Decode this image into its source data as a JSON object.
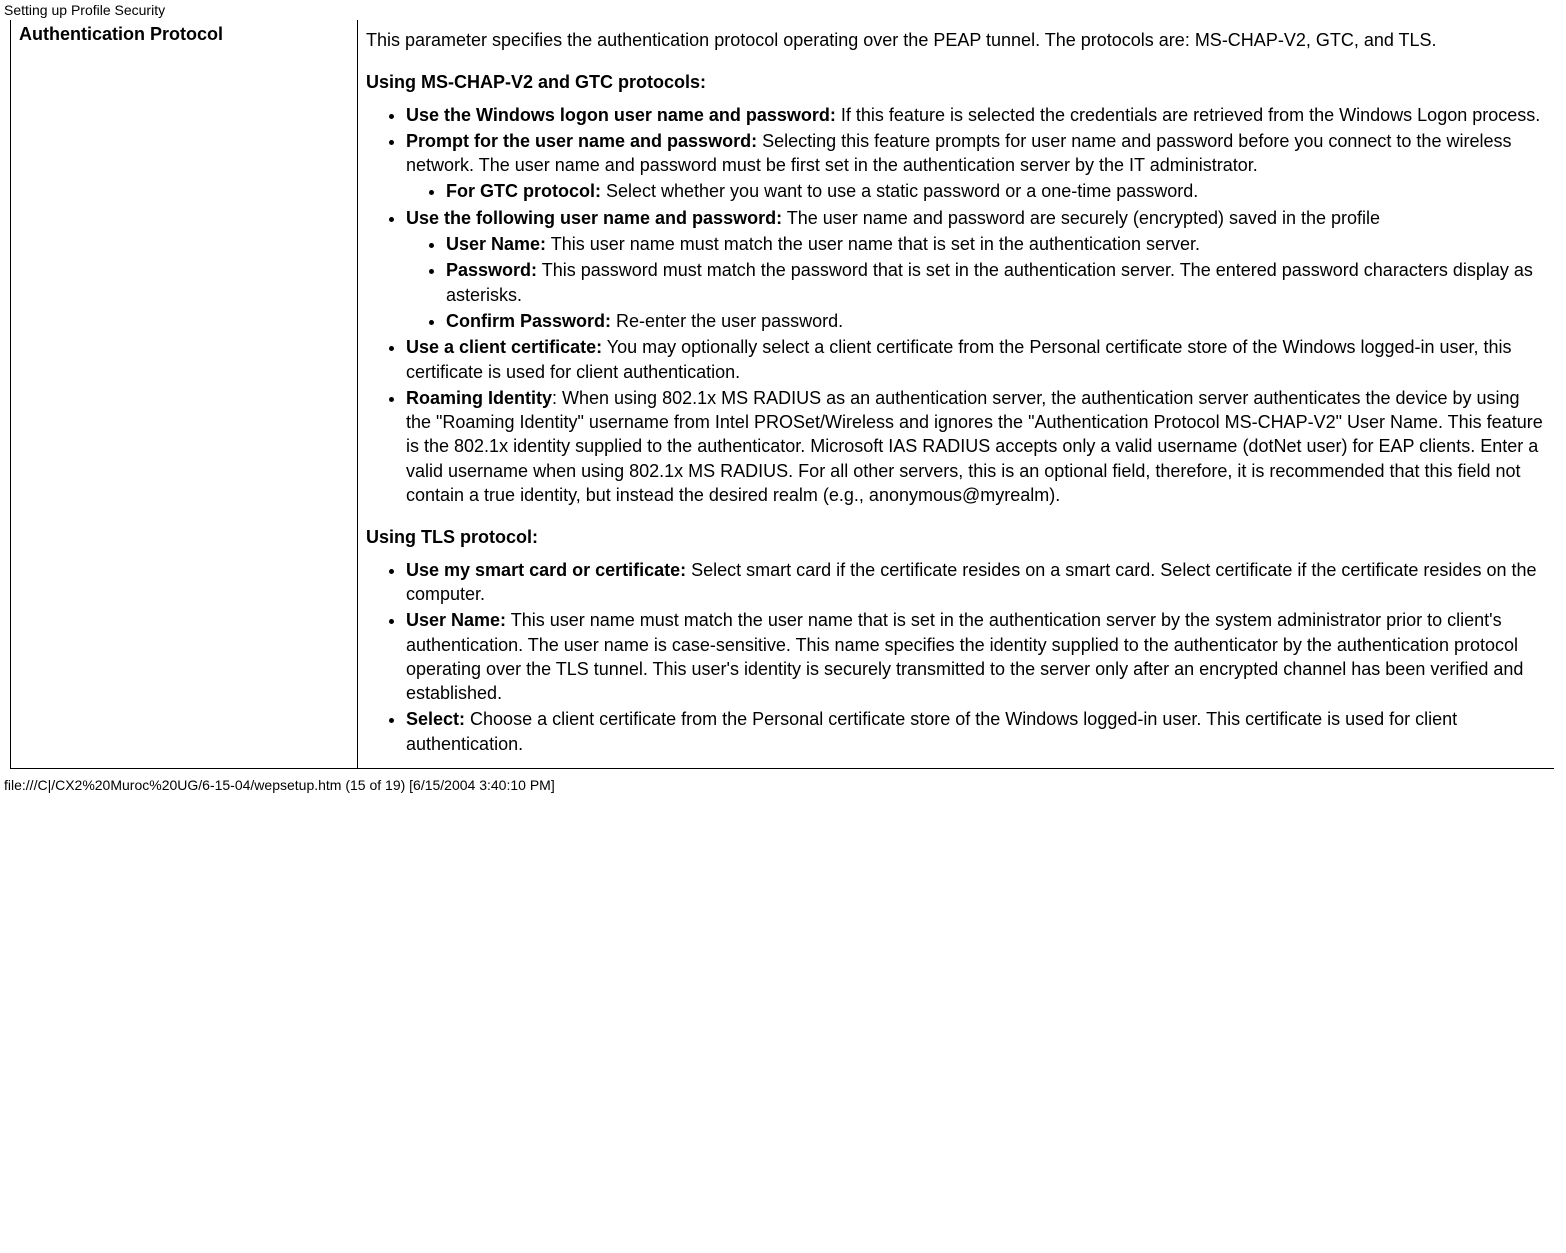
{
  "header": {
    "title": "Setting up Profile Security"
  },
  "table": {
    "left": {
      "param_name": "Authentication Protocol"
    },
    "right": {
      "intro": "This parameter specifies the authentication protocol operating over the PEAP tunnel. The protocols are: MS-CHAP-V2, GTC, and TLS.",
      "mschap_heading": "Using MS-CHAP-V2 and GTC protocols:",
      "items": {
        "use_win_label": "Use the Windows logon user name and password:",
        "use_win_text": " If this feature is selected the credentials are retrieved from the Windows Logon process.",
        "prompt_label": "Prompt for the user name and password:",
        "prompt_text": " Selecting this feature prompts for user name and password before you connect to the wireless network. The user name and password must be first set in the authentication server by the IT administrator.",
        "gtc_label": "For GTC protocol:",
        "gtc_text": " Select whether you want to use a static password or a one-time password.",
        "use_following_label": "Use the following user name and password:",
        "use_following_text": " The user name and password are securely (encrypted) saved in the profile",
        "username_label": "User Name:",
        "username_text": " This user name must match the user name that is set in the authentication server.",
        "password_label": "Password:",
        "password_text": " This password must match the password that is set in the authentication server. The entered password characters display as asterisks.",
        "confirm_label": "Confirm Password:",
        "confirm_text": " Re-enter the user password.",
        "client_cert_label": "Use a client certificate:",
        "client_cert_text": " You may optionally select a client certificate from the Personal certificate store of the Windows logged-in user, this certificate is used for client authentication.",
        "roaming_label": "Roaming Identity",
        "roaming_text": ": When using 802.1x MS RADIUS as an authentication server, the authentication server authenticates the device by using the \"Roaming Identity\" username from Intel PROSet/Wireless and ignores the \"Authentication Protocol MS-CHAP-V2\" User Name. This feature is the 802.1x identity supplied to the authenticator. Microsoft IAS RADIUS accepts only a valid username (dotNet user) for EAP clients. Enter a valid username when using 802.1x MS RADIUS. For all other servers, this is an optional field, therefore, it is recommended that this field not contain a true identity, but instead the desired realm (e.g., anonymous@myrealm)."
      },
      "tls_heading": "Using TLS protocol:",
      "tls_items": {
        "smartcard_label": "Use my smart card or certificate:",
        "smartcard_text": " Select smart card if the certificate resides on a smart card. Select certificate if the certificate resides on the computer.",
        "tls_username_label": "User Name:",
        "tls_username_text": " This user name must match the user name that is set in the authentication server by the system administrator prior to client's authentication. The user name is case-sensitive. This name specifies the identity supplied to the authenticator by the authentication protocol operating over the TLS tunnel. This user's identity is securely transmitted to the server only after an encrypted channel has been verified and established.",
        "select_label": "Select:",
        "select_text": " Choose a client certificate from the Personal certificate store of the Windows logged-in user. This certificate is used for client authentication."
      }
    }
  },
  "footer": {
    "text": "file:///C|/CX2%20Muroc%20UG/6-15-04/wepsetup.htm (15 of 19) [6/15/2004 3:40:10 PM]"
  }
}
